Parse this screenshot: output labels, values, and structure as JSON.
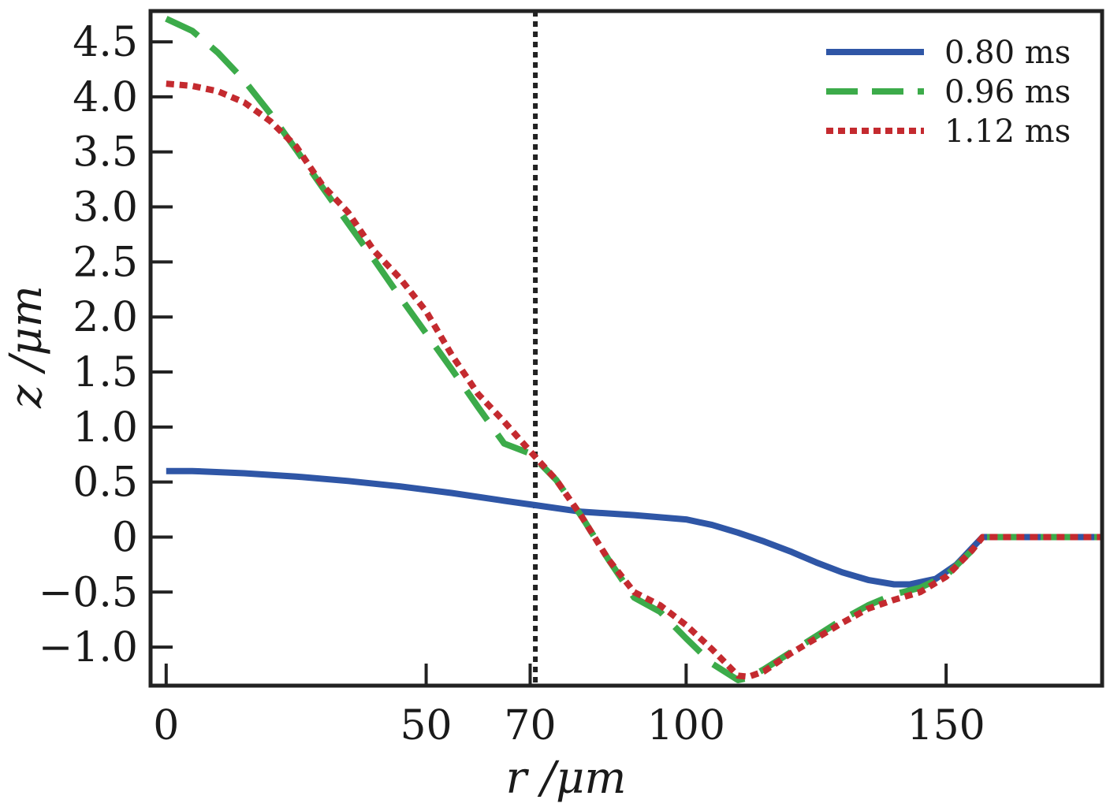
{
  "chart_data": {
    "type": "line",
    "title": "",
    "xlabel": "r /μm",
    "ylabel": "z /μm",
    "xlim": [
      -3,
      180
    ],
    "ylim": [
      -1.35,
      4.78
    ],
    "grid": false,
    "legend_position": "top-right",
    "x_ticks": [
      0,
      50,
      70,
      100,
      150
    ],
    "x_tick_labels": [
      "0",
      "50",
      "70",
      "100",
      "150"
    ],
    "y_ticks": [
      4.5,
      4.0,
      3.5,
      3.0,
      2.5,
      2.0,
      1.5,
      1.0,
      0.5,
      0,
      -0.5,
      -1.0
    ],
    "y_tick_labels": [
      "4.5",
      "4.0",
      "3.5",
      "3.0",
      "2.5",
      "2.0",
      "1.5",
      "1.0",
      "0.5",
      "0",
      "−0.5",
      "−1.0"
    ],
    "annotations": [
      {
        "type": "vertical-line",
        "x": 71,
        "style": "dotted",
        "color": "#222222"
      }
    ],
    "series": [
      {
        "name": "0.80 ms",
        "color": "#2f56a6",
        "dash": "solid",
        "x": [
          0,
          5,
          15,
          25,
          35,
          45,
          55,
          65,
          71,
          80,
          90,
          100,
          105,
          110,
          115,
          120,
          125,
          130,
          135,
          140,
          143,
          148,
          152,
          155,
          157,
          160,
          170,
          180
        ],
        "y": [
          0.6,
          0.6,
          0.58,
          0.55,
          0.51,
          0.46,
          0.4,
          0.33,
          0.29,
          0.23,
          0.2,
          0.16,
          0.11,
          0.04,
          -0.04,
          -0.13,
          -0.23,
          -0.32,
          -0.39,
          -0.43,
          -0.43,
          -0.38,
          -0.25,
          -0.1,
          0,
          0,
          0,
          0
        ]
      },
      {
        "name": "0.96 ms",
        "color": "#3cab4a",
        "dash": "long-dash",
        "x": [
          0,
          5,
          10,
          15,
          20,
          25,
          30,
          35,
          40,
          45,
          50,
          55,
          60,
          65,
          70,
          75,
          80,
          85,
          90,
          95,
          100,
          105,
          110,
          112,
          115,
          120,
          125,
          130,
          135,
          140,
          145,
          150,
          155,
          157,
          160,
          170,
          180
        ],
        "y": [
          4.71,
          4.6,
          4.4,
          4.15,
          3.85,
          3.52,
          3.18,
          2.85,
          2.52,
          2.18,
          1.85,
          1.52,
          1.18,
          0.85,
          0.76,
          0.52,
          0.18,
          -0.2,
          -0.55,
          -0.68,
          -0.92,
          -1.15,
          -1.3,
          -1.28,
          -1.2,
          -1.05,
          -0.9,
          -0.75,
          -0.62,
          -0.52,
          -0.46,
          -0.35,
          -0.12,
          0,
          0,
          0,
          0
        ]
      },
      {
        "name": "1.12 ms",
        "color": "#c42a2f",
        "dash": "dotted",
        "x": [
          0,
          5,
          10,
          15,
          20,
          25,
          30,
          35,
          40,
          45,
          50,
          55,
          60,
          65,
          70,
          75,
          80,
          85,
          90,
          95,
          100,
          105,
          110,
          112,
          115,
          120,
          125,
          130,
          135,
          140,
          145,
          150,
          155,
          157,
          160,
          170,
          180
        ],
        "y": [
          4.12,
          4.1,
          4.05,
          3.95,
          3.78,
          3.55,
          3.2,
          2.95,
          2.6,
          2.35,
          2.05,
          1.65,
          1.3,
          1.05,
          0.78,
          0.52,
          0.18,
          -0.2,
          -0.5,
          -0.62,
          -0.8,
          -1.02,
          -1.26,
          -1.27,
          -1.22,
          -1.06,
          -0.92,
          -0.78,
          -0.65,
          -0.57,
          -0.5,
          -0.36,
          -0.12,
          0,
          0,
          0,
          0
        ]
      }
    ]
  }
}
